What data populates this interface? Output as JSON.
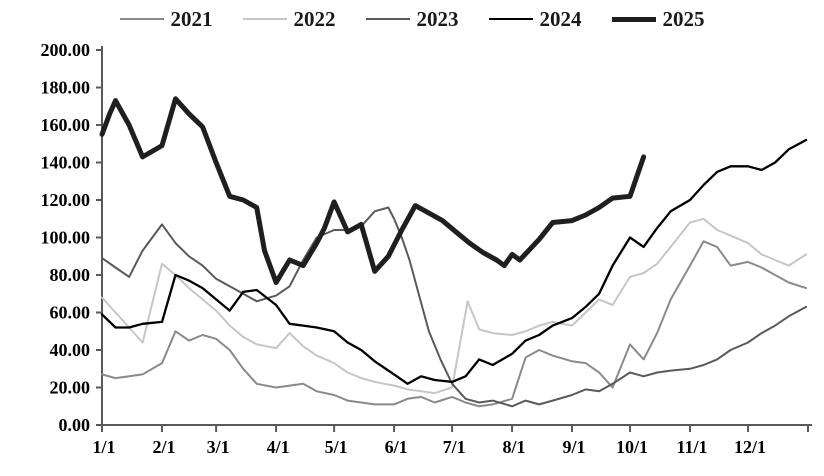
{
  "chart_data": {
    "type": "line",
    "title": "",
    "xlabel": "",
    "ylabel": "",
    "grid": false,
    "legend_position": "top",
    "axis_color": "#595959",
    "x_axis": {
      "tick_labels": [
        "1/1",
        "2/1",
        "3/1",
        "4/1",
        "5/1",
        "6/1",
        "7/1",
        "8/1",
        "9/1",
        "10/1",
        "11/1",
        "12/1"
      ],
      "tick_days": [
        1,
        32,
        60,
        91,
        121,
        152,
        182,
        213,
        244,
        274,
        305,
        335
      ],
      "end_day": 366
    },
    "y_axis": {
      "min": 0,
      "max": 200,
      "step": 20,
      "tick_labels": [
        "0.00",
        "20.00",
        "40.00",
        "60.00",
        "80.00",
        "100.00",
        "120.00",
        "140.00",
        "160.00",
        "180.00",
        "200.00"
      ]
    },
    "series": [
      {
        "name": "2021",
        "color": "#8a8a8a",
        "width": 2,
        "points": [
          [
            1,
            27
          ],
          [
            8,
            25
          ],
          [
            15,
            26
          ],
          [
            22,
            27
          ],
          [
            32,
            33
          ],
          [
            39,
            50
          ],
          [
            46,
            45
          ],
          [
            53,
            48
          ],
          [
            60,
            46
          ],
          [
            67,
            40
          ],
          [
            74,
            30
          ],
          [
            81,
            22
          ],
          [
            91,
            20
          ],
          [
            98,
            21
          ],
          [
            105,
            22
          ],
          [
            112,
            18
          ],
          [
            121,
            16
          ],
          [
            128,
            13
          ],
          [
            135,
            12
          ],
          [
            142,
            11
          ],
          [
            152,
            11
          ],
          [
            159,
            14
          ],
          [
            166,
            15
          ],
          [
            173,
            12
          ],
          [
            182,
            15
          ],
          [
            189,
            12
          ],
          [
            196,
            10
          ],
          [
            203,
            11
          ],
          [
            213,
            14
          ],
          [
            220,
            36
          ],
          [
            227,
            40
          ],
          [
            234,
            37
          ],
          [
            244,
            34
          ],
          [
            251,
            33
          ],
          [
            258,
            28
          ],
          [
            265,
            20
          ],
          [
            274,
            43
          ],
          [
            281,
            35
          ],
          [
            288,
            49
          ],
          [
            295,
            67
          ],
          [
            305,
            85
          ],
          [
            312,
            98
          ],
          [
            319,
            95
          ],
          [
            326,
            85
          ],
          [
            335,
            87
          ],
          [
            342,
            84
          ],
          [
            349,
            80
          ],
          [
            356,
            76
          ],
          [
            365,
            73
          ]
        ]
      },
      {
        "name": "2022",
        "color": "#c6c6c6",
        "width": 2,
        "points": [
          [
            1,
            68
          ],
          [
            8,
            60
          ],
          [
            15,
            52
          ],
          [
            22,
            44
          ],
          [
            32,
            86
          ],
          [
            39,
            80
          ],
          [
            46,
            73
          ],
          [
            53,
            67
          ],
          [
            60,
            61
          ],
          [
            67,
            53
          ],
          [
            74,
            47
          ],
          [
            81,
            43
          ],
          [
            91,
            41
          ],
          [
            98,
            49
          ],
          [
            105,
            42
          ],
          [
            112,
            37
          ],
          [
            121,
            33
          ],
          [
            128,
            28
          ],
          [
            135,
            25
          ],
          [
            142,
            23
          ],
          [
            152,
            21
          ],
          [
            159,
            19
          ],
          [
            166,
            18
          ],
          [
            173,
            17
          ],
          [
            182,
            20
          ],
          [
            190,
            66
          ],
          [
            196,
            51
          ],
          [
            203,
            49
          ],
          [
            213,
            48
          ],
          [
            220,
            50
          ],
          [
            227,
            53
          ],
          [
            234,
            55
          ],
          [
            244,
            53
          ],
          [
            251,
            60
          ],
          [
            258,
            67
          ],
          [
            265,
            64
          ],
          [
            274,
            79
          ],
          [
            281,
            81
          ],
          [
            288,
            86
          ],
          [
            295,
            95
          ],
          [
            305,
            108
          ],
          [
            312,
            110
          ],
          [
            319,
            104
          ],
          [
            326,
            101
          ],
          [
            335,
            97
          ],
          [
            342,
            91
          ],
          [
            349,
            88
          ],
          [
            356,
            85
          ],
          [
            365,
            91
          ]
        ]
      },
      {
        "name": "2023",
        "color": "#5a5a5a",
        "width": 2,
        "points": [
          [
            1,
            89
          ],
          [
            8,
            84
          ],
          [
            15,
            79
          ],
          [
            22,
            93
          ],
          [
            32,
            107
          ],
          [
            39,
            97
          ],
          [
            46,
            90
          ],
          [
            53,
            85
          ],
          [
            60,
            78
          ],
          [
            67,
            74
          ],
          [
            74,
            70
          ],
          [
            81,
            66
          ],
          [
            91,
            69
          ],
          [
            98,
            74
          ],
          [
            105,
            88
          ],
          [
            112,
            100
          ],
          [
            121,
            104
          ],
          [
            128,
            104
          ],
          [
            135,
            106
          ],
          [
            142,
            114
          ],
          [
            149,
            116
          ],
          [
            152,
            110
          ],
          [
            156,
            100
          ],
          [
            160,
            88
          ],
          [
            166,
            65
          ],
          [
            170,
            50
          ],
          [
            176,
            35
          ],
          [
            182,
            22
          ],
          [
            189,
            14
          ],
          [
            196,
            12
          ],
          [
            203,
            13
          ],
          [
            213,
            10
          ],
          [
            220,
            13
          ],
          [
            227,
            11
          ],
          [
            234,
            13
          ],
          [
            244,
            16
          ],
          [
            251,
            19
          ],
          [
            258,
            18
          ],
          [
            265,
            22
          ],
          [
            274,
            28
          ],
          [
            281,
            26
          ],
          [
            288,
            28
          ],
          [
            295,
            29
          ],
          [
            305,
            30
          ],
          [
            312,
            32
          ],
          [
            319,
            35
          ],
          [
            326,
            40
          ],
          [
            335,
            44
          ],
          [
            342,
            49
          ],
          [
            349,
            53
          ],
          [
            356,
            58
          ],
          [
            365,
            63
          ]
        ]
      },
      {
        "name": "2024",
        "color": "#000000",
        "width": 2.3,
        "points": [
          [
            1,
            59
          ],
          [
            8,
            52
          ],
          [
            15,
            52
          ],
          [
            22,
            54
          ],
          [
            32,
            55
          ],
          [
            39,
            80
          ],
          [
            46,
            77
          ],
          [
            53,
            73
          ],
          [
            60,
            67
          ],
          [
            67,
            61
          ],
          [
            74,
            71
          ],
          [
            81,
            72
          ],
          [
            91,
            64
          ],
          [
            98,
            54
          ],
          [
            105,
            53
          ],
          [
            112,
            52
          ],
          [
            121,
            50
          ],
          [
            128,
            44
          ],
          [
            135,
            40
          ],
          [
            142,
            34
          ],
          [
            152,
            27
          ],
          [
            159,
            22
          ],
          [
            166,
            26
          ],
          [
            173,
            24
          ],
          [
            182,
            23
          ],
          [
            189,
            26
          ],
          [
            196,
            35
          ],
          [
            203,
            32
          ],
          [
            213,
            38
          ],
          [
            220,
            45
          ],
          [
            227,
            48
          ],
          [
            234,
            53
          ],
          [
            244,
            57
          ],
          [
            251,
            63
          ],
          [
            258,
            70
          ],
          [
            265,
            85
          ],
          [
            274,
            100
          ],
          [
            281,
            95
          ],
          [
            288,
            105
          ],
          [
            295,
            114
          ],
          [
            305,
            120
          ],
          [
            312,
            128
          ],
          [
            319,
            135
          ],
          [
            326,
            138
          ],
          [
            335,
            138
          ],
          [
            342,
            136
          ],
          [
            349,
            140
          ],
          [
            356,
            147
          ],
          [
            365,
            152
          ]
        ]
      },
      {
        "name": "2025",
        "color": "#1f1f1f",
        "width": 5,
        "points": [
          [
            1,
            155
          ],
          [
            5,
            166
          ],
          [
            8,
            173
          ],
          [
            15,
            160
          ],
          [
            22,
            143
          ],
          [
            32,
            149
          ],
          [
            39,
            174
          ],
          [
            46,
            166
          ],
          [
            53,
            159
          ],
          [
            60,
            140
          ],
          [
            67,
            122
          ],
          [
            74,
            120
          ],
          [
            81,
            116
          ],
          [
            85,
            93
          ],
          [
            91,
            76
          ],
          [
            98,
            88
          ],
          [
            105,
            85
          ],
          [
            112,
            97
          ],
          [
            116,
            105
          ],
          [
            121,
            119
          ],
          [
            128,
            103
          ],
          [
            135,
            107
          ],
          [
            142,
            82
          ],
          [
            149,
            90
          ],
          [
            156,
            104
          ],
          [
            163,
            117
          ],
          [
            170,
            113
          ],
          [
            177,
            109
          ],
          [
            184,
            103
          ],
          [
            191,
            97
          ],
          [
            198,
            92
          ],
          [
            205,
            88
          ],
          [
            209,
            85
          ],
          [
            213,
            91
          ],
          [
            217,
            88
          ],
          [
            227,
            99
          ],
          [
            234,
            108
          ],
          [
            244,
            109
          ],
          [
            251,
            112
          ],
          [
            258,
            116
          ],
          [
            265,
            121
          ],
          [
            274,
            122
          ],
          [
            281,
            143
          ]
        ]
      }
    ]
  }
}
